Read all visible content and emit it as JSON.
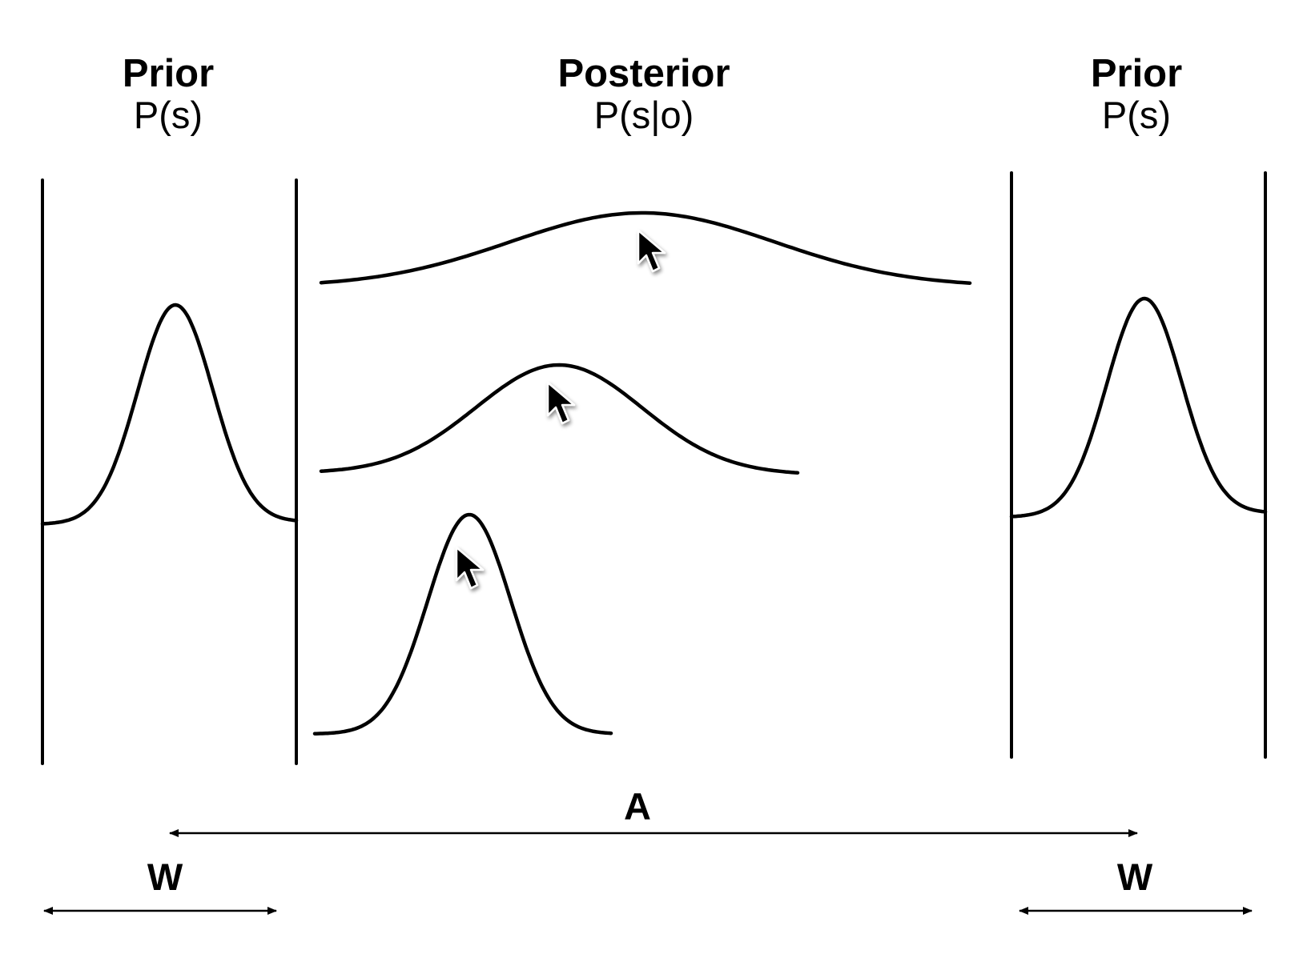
{
  "left_panel": {
    "title": "Prior",
    "formula": "P(s)"
  },
  "center_panel": {
    "title": "Posterior",
    "formula": "P(s|o)"
  },
  "right_panel": {
    "title": "Prior",
    "formula": "P(s)"
  },
  "dimensions": {
    "amplitude_label": "A",
    "width_left_label": "W",
    "width_right_label": "W"
  },
  "icons": {
    "cursor": "mouse-pointer-icon"
  },
  "colors": {
    "ink": "#000000",
    "background": "#ffffff"
  }
}
